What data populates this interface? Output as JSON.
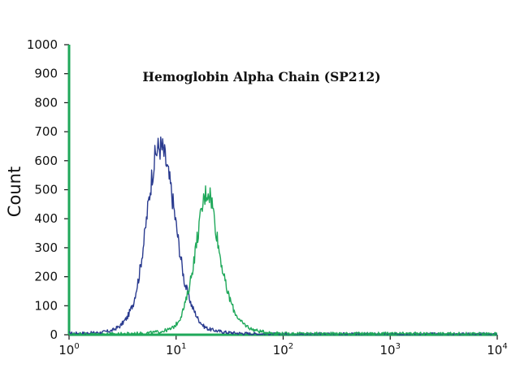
{
  "chart_data": {
    "type": "line",
    "title": "Hemoglobin Alpha Chain (SP212)",
    "xlabel": "",
    "ylabel": "Count",
    "x_scale": "log",
    "xlim": [
      1,
      10000
    ],
    "ylim": [
      0,
      1000
    ],
    "y_ticks": [
      "0",
      "100",
      "200",
      "300",
      "400",
      "500",
      "600",
      "700",
      "800",
      "900",
      "1000"
    ],
    "x_ticks": [
      {
        "base": "10",
        "exp": "0"
      },
      {
        "base": "10",
        "exp": "1"
      },
      {
        "base": "10",
        "exp": "2"
      },
      {
        "base": "10",
        "exp": "3"
      },
      {
        "base": "10",
        "exp": "4"
      }
    ],
    "legend": "none",
    "grid": false,
    "series": [
      {
        "color": "#2a3b8f",
        "x": [
          1,
          1.3,
          1.6,
          2,
          2.5,
          3,
          3.5,
          4,
          4.5,
          5,
          5.5,
          6,
          6.5,
          7,
          7.5,
          8,
          9,
          10,
          11,
          12,
          14,
          16,
          18,
          20,
          25,
          30,
          40,
          60,
          100,
          10000
        ],
        "y": [
          5,
          5,
          6,
          8,
          14,
          30,
          60,
          110,
          200,
          320,
          450,
          560,
          630,
          650,
          640,
          600,
          500,
          380,
          270,
          180,
          100,
          55,
          30,
          20,
          12,
          8,
          5,
          3,
          2,
          2
        ]
      },
      {
        "color": "#1fa85a",
        "x": [
          1,
          2,
          3,
          5,
          7,
          9,
          10,
          11,
          12,
          13,
          14,
          15,
          16,
          17,
          18,
          19,
          20,
          21,
          22,
          23,
          25,
          28,
          30,
          35,
          40,
          50,
          60,
          70,
          100,
          10000
        ],
        "y": [
          2,
          2,
          3,
          5,
          10,
          20,
          35,
          60,
          100,
          150,
          210,
          280,
          350,
          410,
          460,
          490,
          495,
          480,
          440,
          390,
          300,
          200,
          150,
          80,
          45,
          20,
          12,
          8,
          4,
          3
        ]
      }
    ]
  }
}
